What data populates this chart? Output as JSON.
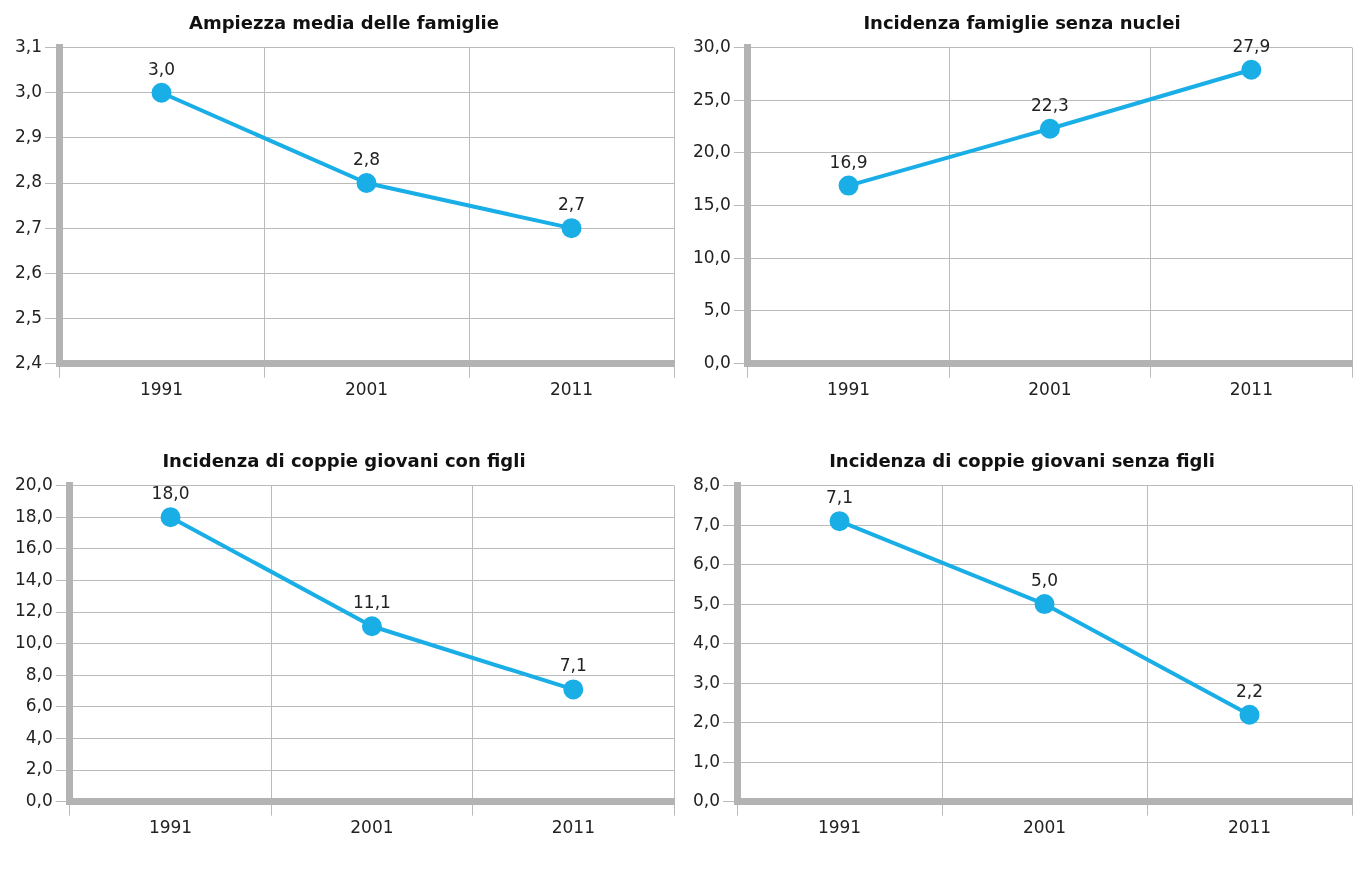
{
  "chart_data": [
    {
      "type": "line",
      "title": "Ampiezza media delle famiglie",
      "categories": [
        "1991",
        "2001",
        "2011"
      ],
      "series": [
        {
          "color": "#1aaee6",
          "values": [
            3.0,
            2.8,
            2.7
          ],
          "value_labels": [
            "3,0",
            "2,8",
            "2,7"
          ]
        }
      ],
      "ylim": [
        2.4,
        3.1
      ],
      "yticks": [
        {
          "value": 2.4,
          "label": "2,4"
        },
        {
          "value": 2.5,
          "label": "2,5"
        },
        {
          "value": 2.6,
          "label": "2,6"
        },
        {
          "value": 2.7,
          "label": "2,7"
        },
        {
          "value": 2.8,
          "label": "2,8"
        },
        {
          "value": 2.9,
          "label": "2,9"
        },
        {
          "value": 3.0,
          "label": "3,0"
        },
        {
          "value": 3.1,
          "label": "3,1"
        }
      ],
      "grid": true,
      "marker": "circle",
      "legend": false
    },
    {
      "type": "line",
      "title": "Incidenza famiglie senza nuclei",
      "categories": [
        "1991",
        "2001",
        "2011"
      ],
      "series": [
        {
          "color": "#1aaee6",
          "values": [
            16.9,
            22.3,
            27.9
          ],
          "value_labels": [
            "16,9",
            "22,3",
            "27,9"
          ]
        }
      ],
      "ylim": [
        0,
        30
      ],
      "yticks": [
        {
          "value": 0,
          "label": "0,0"
        },
        {
          "value": 5,
          "label": "5,0"
        },
        {
          "value": 10,
          "label": "10,0"
        },
        {
          "value": 15,
          "label": "15,0"
        },
        {
          "value": 20,
          "label": "20,0"
        },
        {
          "value": 25,
          "label": "25,0"
        },
        {
          "value": 30,
          "label": "30,0"
        }
      ],
      "grid": true,
      "marker": "circle",
      "legend": false
    },
    {
      "type": "line",
      "title": "Incidenza di coppie giovani con figli",
      "categories": [
        "1991",
        "2001",
        "2011"
      ],
      "series": [
        {
          "color": "#1aaee6",
          "values": [
            18.0,
            11.1,
            7.1
          ],
          "value_labels": [
            "18,0",
            "11,1",
            "7,1"
          ]
        }
      ],
      "ylim": [
        0,
        20
      ],
      "yticks": [
        {
          "value": 0,
          "label": "0,0"
        },
        {
          "value": 2,
          "label": "2,0"
        },
        {
          "value": 4,
          "label": "4,0"
        },
        {
          "value": 6,
          "label": "6,0"
        },
        {
          "value": 8,
          "label": "8,0"
        },
        {
          "value": 10,
          "label": "10,0"
        },
        {
          "value": 12,
          "label": "12,0"
        },
        {
          "value": 14,
          "label": "14,0"
        },
        {
          "value": 16,
          "label": "16,0"
        },
        {
          "value": 18,
          "label": "18,0"
        },
        {
          "value": 20,
          "label": "20,0"
        }
      ],
      "grid": true,
      "marker": "circle",
      "legend": false
    },
    {
      "type": "line",
      "title": "Incidenza di coppie giovani senza figli",
      "categories": [
        "1991",
        "2001",
        "2011"
      ],
      "series": [
        {
          "color": "#1aaee6",
          "values": [
            7.1,
            5.0,
            2.2
          ],
          "value_labels": [
            "7,1",
            "5,0",
            "2,2"
          ]
        }
      ],
      "ylim": [
        0,
        8
      ],
      "yticks": [
        {
          "value": 0,
          "label": "0,0"
        },
        {
          "value": 1,
          "label": "1,0"
        },
        {
          "value": 2,
          "label": "2,0"
        },
        {
          "value": 3,
          "label": "3,0"
        },
        {
          "value": 4,
          "label": "4,0"
        },
        {
          "value": 5,
          "label": "5,0"
        },
        {
          "value": 6,
          "label": "6,0"
        },
        {
          "value": 7,
          "label": "7,0"
        },
        {
          "value": 8,
          "label": "8,0"
        }
      ],
      "grid": true,
      "marker": "circle",
      "legend": false
    }
  ]
}
